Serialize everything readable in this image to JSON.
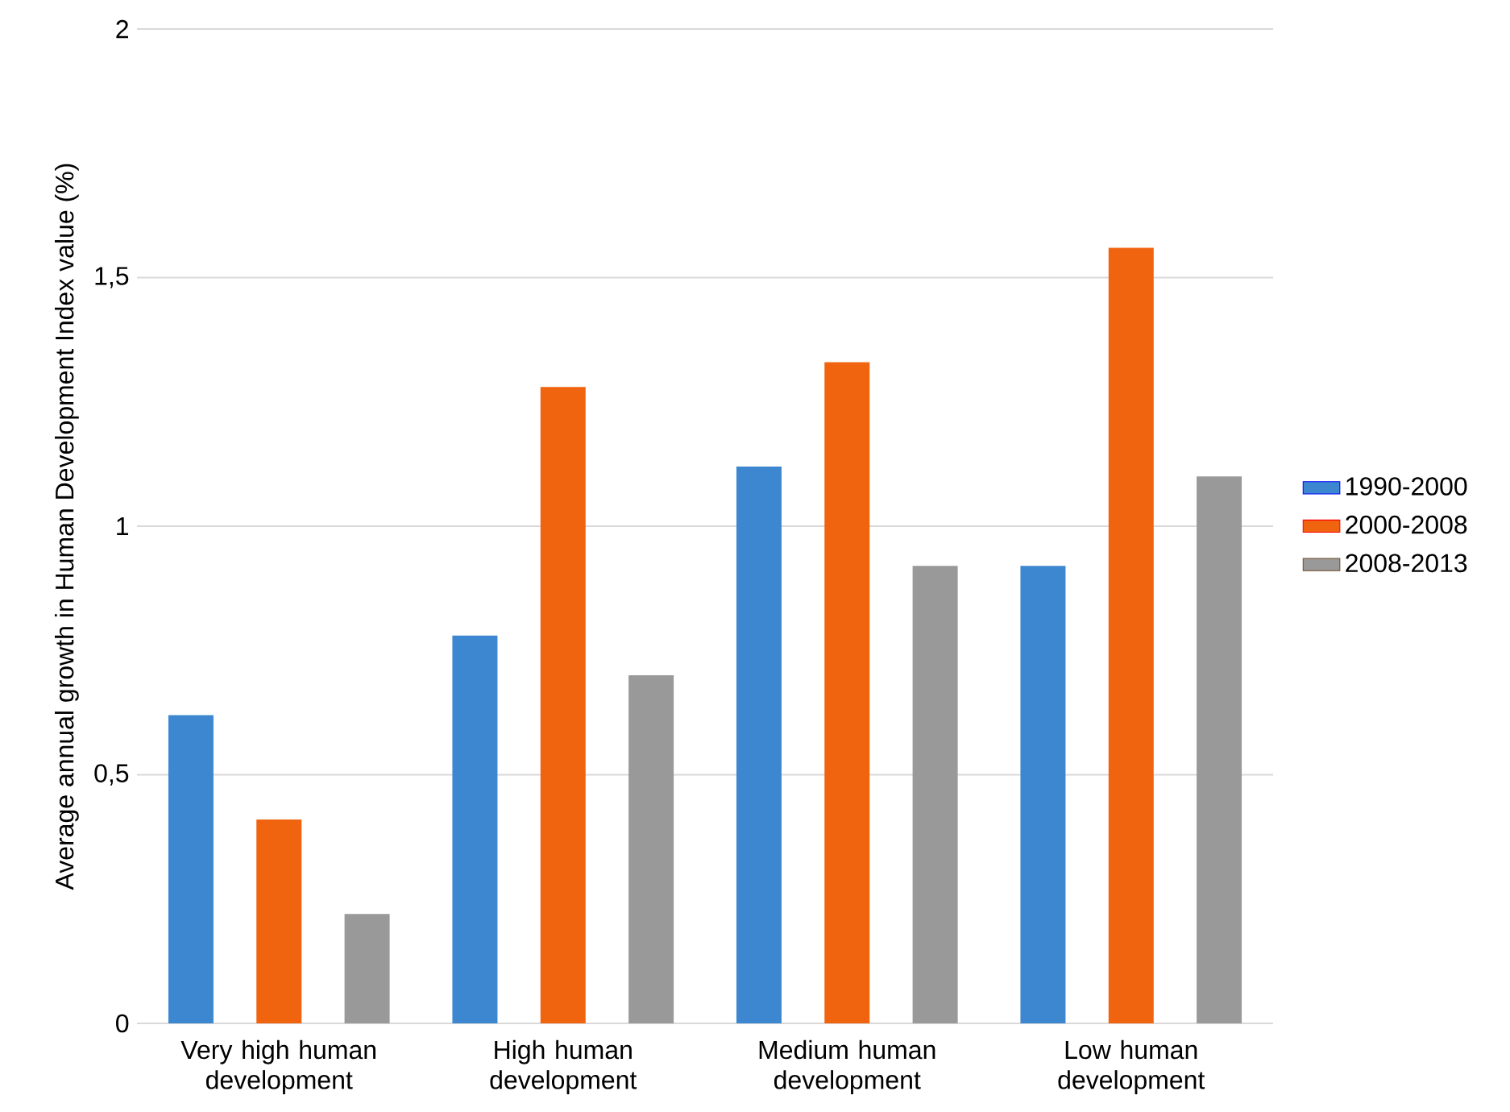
{
  "chart_data": {
    "type": "bar",
    "ylabel": "Average annual growth in Human Development Index value (%)",
    "categories": [
      "Very high human development",
      "High human development",
      "Medium human development",
      "Low human development"
    ],
    "series": [
      {
        "name": "1990-2000",
        "color": "#3c87d0",
        "values": [
          0.62,
          0.78,
          1.12,
          0.92
        ]
      },
      {
        "name": "2000-2008",
        "color": "#f0640f",
        "values": [
          0.41,
          1.28,
          1.33,
          1.56
        ]
      },
      {
        "name": "2008-2013",
        "color": "#999999",
        "values": [
          0.22,
          0.7,
          0.92,
          1.1
        ]
      }
    ],
    "ylim": [
      0,
      2
    ],
    "yticks": [
      0,
      {
        "value": 0.5,
        "label": "0,5"
      },
      1,
      {
        "value": 1.5,
        "label": "1,5"
      },
      2
    ],
    "grid": "y",
    "legend": "right"
  }
}
